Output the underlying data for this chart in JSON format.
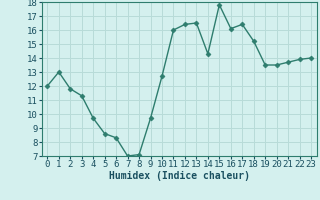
{
  "x": [
    0,
    1,
    2,
    3,
    4,
    5,
    6,
    7,
    8,
    9,
    10,
    11,
    12,
    13,
    14,
    15,
    16,
    17,
    18,
    19,
    20,
    21,
    22,
    23
  ],
  "y": [
    12.0,
    13.0,
    11.8,
    11.3,
    9.7,
    8.6,
    8.3,
    7.0,
    7.1,
    9.7,
    12.7,
    16.0,
    16.4,
    16.5,
    14.3,
    17.8,
    16.1,
    16.4,
    15.2,
    13.5,
    13.5,
    13.7,
    13.9,
    14.0
  ],
  "line_color": "#2e7d6e",
  "marker": "D",
  "marker_size": 2.5,
  "bg_color": "#d4f0ee",
  "grid_color": "#b8dbd8",
  "xlabel": "Humidex (Indice chaleur)",
  "ylim": [
    7,
    18
  ],
  "xlim": [
    -0.5,
    23.5
  ],
  "yticks": [
    7,
    8,
    9,
    10,
    11,
    12,
    13,
    14,
    15,
    16,
    17,
    18
  ],
  "xticks": [
    0,
    1,
    2,
    3,
    4,
    5,
    6,
    7,
    8,
    9,
    10,
    11,
    12,
    13,
    14,
    15,
    16,
    17,
    18,
    19,
    20,
    21,
    22,
    23
  ],
  "xlabel_fontsize": 7,
  "tick_fontsize": 6.5,
  "tick_color": "#1a5060",
  "axis_color": "#2e7d6e",
  "linewidth": 1.0
}
